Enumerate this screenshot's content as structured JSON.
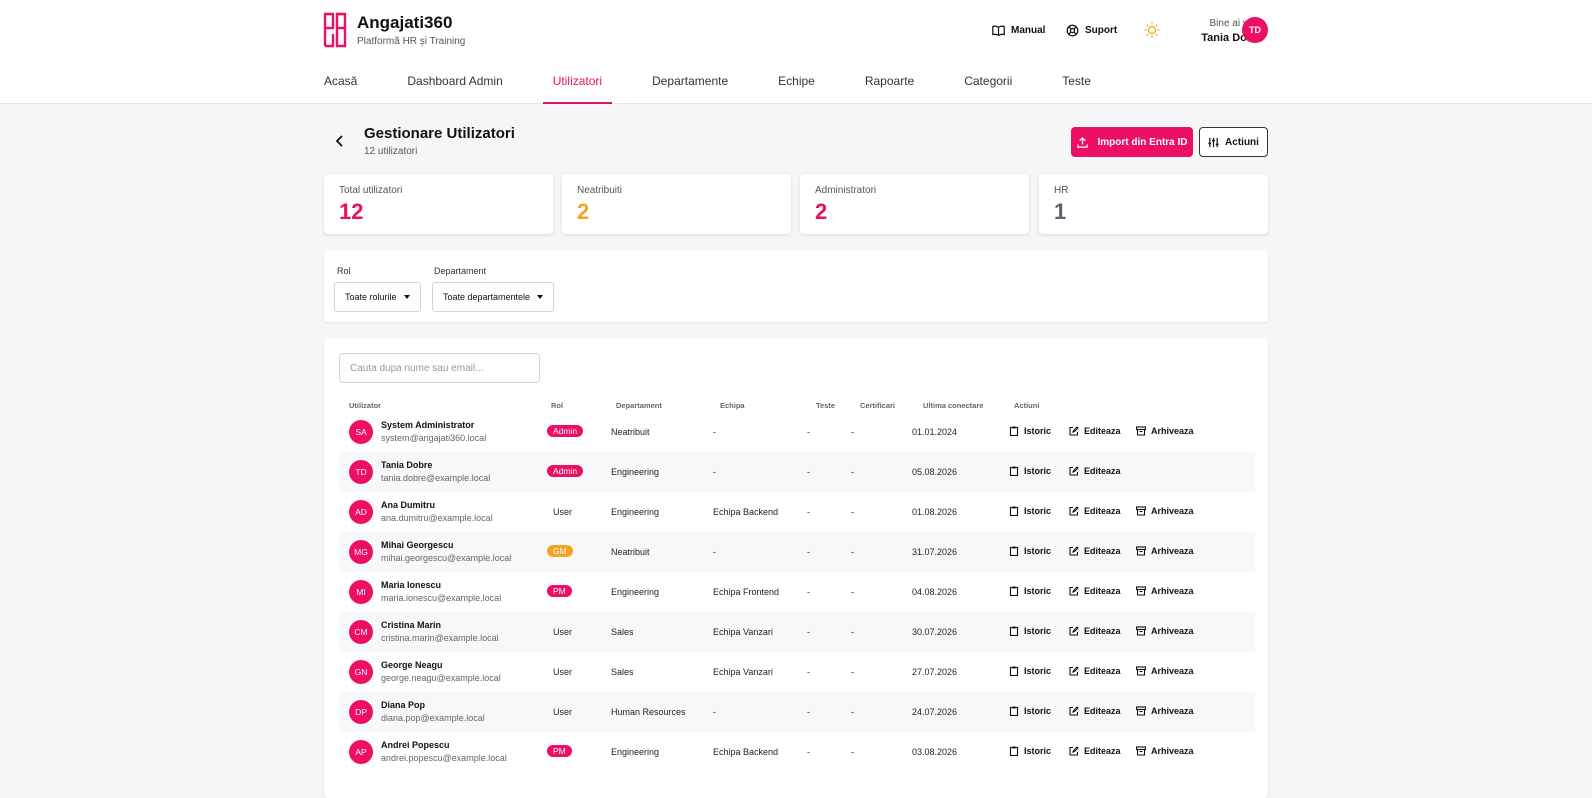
{
  "brand": {
    "name": "Angajati360",
    "subtitle": "Platformă HR și Training",
    "accent": "#ec0f63"
  },
  "header": {
    "manual_label": "Manual",
    "support_label": "Suport",
    "welcome": "Bine ai venit",
    "user_name": "Tania Dobre",
    "user_initials": "TD"
  },
  "tabs": [
    {
      "label": "Acasă"
    },
    {
      "label": "Dashboard Admin"
    },
    {
      "label": "Utilizatori",
      "active": true
    },
    {
      "label": "Departamente"
    },
    {
      "label": "Echipe"
    },
    {
      "label": "Rapoarte"
    },
    {
      "label": "Categorii"
    },
    {
      "label": "Teste"
    }
  ],
  "page": {
    "title": "Gestionare Utilizatori",
    "subtitle": "12 utilizatori",
    "import_label": "Import din Entra ID",
    "actions_label": "Actiuni"
  },
  "stats": [
    {
      "label": "Total utilizatori",
      "value": "12",
      "color": "#ec0f63"
    },
    {
      "label": "Neatribuiti",
      "value": "2",
      "color": "#f5a524"
    },
    {
      "label": "Administratori",
      "value": "2",
      "color": "#ec0f63"
    },
    {
      "label": "HR",
      "value": "1",
      "color": "#5b6270"
    }
  ],
  "filters": {
    "role_label": "Rol",
    "role_value": "Toate rolurile",
    "dept_label": "Departament",
    "dept_value": "Toate departamentele"
  },
  "search": {
    "placeholder": "Cauta dupa nume sau email..."
  },
  "columns": {
    "user": "Utilizator",
    "role": "Rol",
    "dept": "Departament",
    "team": "Echipa",
    "tests": "Teste",
    "certs": "Certificari",
    "last_login": "Ultima conectare",
    "actions": "Actiuni"
  },
  "actions": {
    "history": "Istoric",
    "edit": "Editeaza",
    "archive": "Arhiveaza"
  },
  "users": [
    {
      "initials": "SA",
      "name": "System Administrator",
      "email": "system@angajati360.local",
      "role": "Admin",
      "role_style": "pink",
      "dept": "Neatribuit",
      "dept_unassigned": true,
      "team": "-",
      "tests": "-",
      "certs": "-",
      "last_login": "01.01.2024",
      "archivable": true
    },
    {
      "initials": "TD",
      "name": "Tania Dobre",
      "email": "tania.dobre@example.local",
      "role": "Admin",
      "role_style": "pink",
      "dept": "Engineering",
      "team": "-",
      "tests": "-",
      "certs": "-",
      "last_login": "05.08.2026",
      "archivable": false
    },
    {
      "initials": "AD",
      "name": "Ana Dumitru",
      "email": "ana.dumitru@example.local",
      "role": "User",
      "role_style": "plain",
      "dept": "Engineering",
      "team": "Echipa Backend",
      "tests": "-",
      "certs": "-",
      "last_login": "01.08.2026",
      "archivable": true
    },
    {
      "initials": "MG",
      "name": "Mihai Georgescu",
      "email": "mihai.georgescu@example.local",
      "role": "GM",
      "role_style": "orange",
      "dept": "Neatribuit",
      "dept_unassigned": true,
      "team": "-",
      "tests": "-",
      "certs": "-",
      "last_login": "31.07.2026",
      "archivable": true
    },
    {
      "initials": "MI",
      "name": "Maria Ionescu",
      "email": "maria.ionescu@example.local",
      "role": "PM",
      "role_style": "pink",
      "dept": "Engineering",
      "team": "Echipa Frontend",
      "tests": "-",
      "certs": "-",
      "last_login": "04.08.2026",
      "archivable": true
    },
    {
      "initials": "CM",
      "name": "Cristina Marin",
      "email": "cristina.marin@example.local",
      "role": "User",
      "role_style": "plain",
      "dept": "Sales",
      "team": "Echipa Vanzari",
      "tests": "-",
      "certs": "-",
      "last_login": "30.07.2026",
      "archivable": true
    },
    {
      "initials": "GN",
      "name": "George Neagu",
      "email": "george.neagu@example.local",
      "role": "User",
      "role_style": "plain",
      "dept": "Sales",
      "team": "Echipa Vanzari",
      "tests": "-",
      "certs": "-",
      "last_login": "27.07.2026",
      "archivable": true
    },
    {
      "initials": "DP",
      "name": "Diana Pop",
      "email": "diana.pop@example.local",
      "role": "User",
      "role_style": "plain",
      "dept": "Human Resources",
      "team": "-",
      "tests": "-",
      "certs": "-",
      "last_login": "24.07.2026",
      "archivable": true
    },
    {
      "initials": "AP",
      "name": "Andrei Popescu",
      "email": "andrei.popescu@example.local",
      "role": "PM",
      "role_style": "pink",
      "dept": "Engineering",
      "team": "Echipa Backend",
      "tests": "-",
      "certs": "-",
      "last_login": "03.08.2026",
      "archivable": true
    }
  ]
}
